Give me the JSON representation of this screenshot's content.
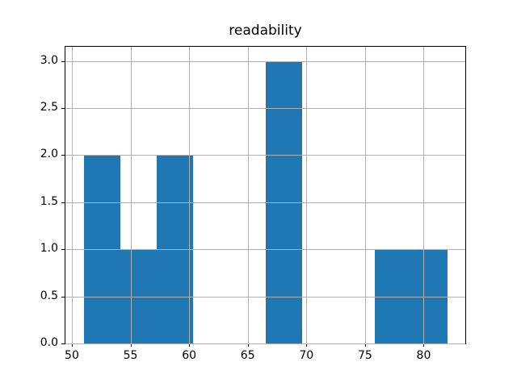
{
  "chart_data": {
    "type": "bar",
    "subtype": "histogram",
    "title": "readability",
    "xlabel": "",
    "ylabel": "",
    "bin_edges": [
      51.0,
      54.1,
      57.2,
      60.3,
      63.4,
      66.5,
      69.6,
      72.7,
      75.8,
      78.9,
      82.0
    ],
    "counts": [
      2,
      1,
      2,
      0,
      0,
      3,
      0,
      0,
      1,
      1
    ],
    "xlim": [
      49.45,
      83.55
    ],
    "ylim": [
      0,
      3.15
    ],
    "x_tick_values": [
      50,
      55,
      60,
      65,
      70,
      75,
      80
    ],
    "x_tick_labels": [
      "50",
      "55",
      "60",
      "65",
      "70",
      "75",
      "80"
    ],
    "y_tick_values": [
      0.0,
      0.5,
      1.0,
      1.5,
      2.0,
      2.5,
      3.0
    ],
    "y_tick_labels": [
      "0.0",
      "0.5",
      "1.0",
      "1.5",
      "2.0",
      "2.5",
      "3.0"
    ],
    "grid": true,
    "grid_above_bars": true,
    "legend": "none",
    "colors": {
      "bar_fill": "#1f77b4",
      "grid_line": "#b0b0b0",
      "spine": "#000000",
      "text": "#000000",
      "background": "#ffffff"
    }
  }
}
